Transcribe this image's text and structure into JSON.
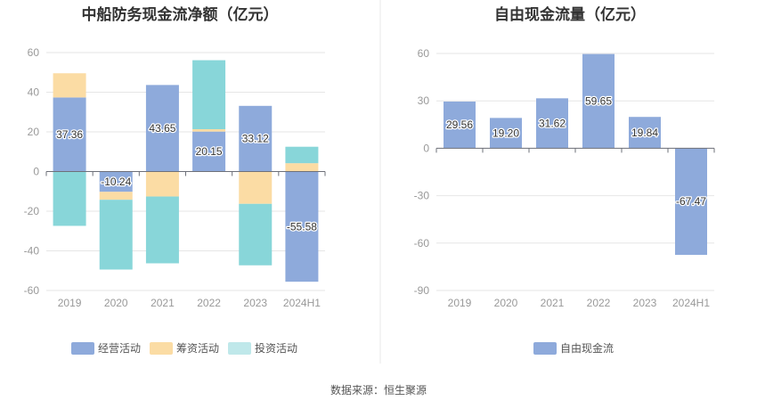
{
  "source": "数据来源：恒生聚源",
  "chart_data": [
    {
      "type": "bar",
      "stacked": true,
      "title": "中船防务现金流净额（亿元）",
      "categories": [
        "2019",
        "2020",
        "2021",
        "2022",
        "2023",
        "2024H1"
      ],
      "ylim": [
        -60,
        60
      ],
      "yticks": [
        -60,
        -40,
        -20,
        0,
        20,
        40,
        60
      ],
      "grid": true,
      "legend_position": "bottom",
      "series": [
        {
          "name": "经营活动",
          "color": "#8eaadb",
          "values": [
            37.36,
            -10.24,
            43.65,
            20.15,
            33.12,
            -55.58
          ]
        },
        {
          "name": "筹资活动",
          "color": "#fbdca4",
          "values": [
            12.2,
            -4.0,
            -12.6,
            1.2,
            -16.3,
            4.2
          ]
        },
        {
          "name": "投资活动",
          "color": "#88d6d9",
          "values": [
            -27.4,
            -35.2,
            -33.7,
            34.8,
            -31.0,
            8.3
          ]
        }
      ],
      "data_labels": [
        "37.36",
        "-10.24",
        "43.65",
        "20.15",
        "33.12",
        "-55.58"
      ]
    },
    {
      "type": "bar",
      "title": "自由现金流量（亿元）",
      "categories": [
        "2019",
        "2020",
        "2021",
        "2022",
        "2023",
        "2024H1"
      ],
      "ylim": [
        -90,
        60
      ],
      "yticks": [
        -90,
        -60,
        -30,
        0,
        30,
        60
      ],
      "grid": true,
      "legend_position": "bottom",
      "series": [
        {
          "name": "自由现金流",
          "color": "#8eaadb",
          "values": [
            29.56,
            19.2,
            31.62,
            59.65,
            19.84,
            -67.47
          ]
        }
      ],
      "data_labels": [
        "29.56",
        "19.20",
        "31.62",
        "59.65",
        "19.84",
        "-67.47"
      ]
    }
  ]
}
